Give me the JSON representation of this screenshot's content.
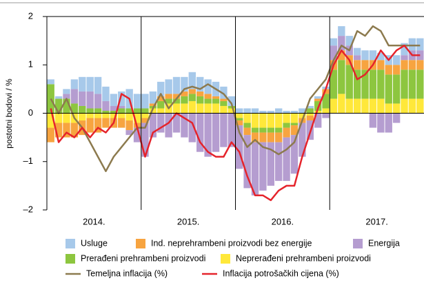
{
  "chart_data": {
    "type": "bar",
    "stacked": true,
    "y_label": "postotni bodovi / %",
    "categories": [
      null,
      null,
      null,
      null,
      null,
      null,
      "2014.",
      null,
      null,
      null,
      null,
      null,
      null,
      null,
      null,
      null,
      null,
      null,
      "2015.",
      null,
      null,
      null,
      null,
      null,
      null,
      null,
      null,
      null,
      null,
      null,
      "2016.",
      null,
      null,
      null,
      null,
      null,
      null,
      null,
      null,
      null,
      null,
      null,
      "2017.",
      null,
      null,
      null,
      null,
      null
    ],
    "ylim": [
      -2,
      2
    ],
    "yticks": [
      {
        "value": -2,
        "label": "–2"
      },
      {
        "value": -1,
        "label": "–1"
      },
      0,
      1,
      2
    ],
    "series": [
      {
        "name": "Usluge",
        "color": "#a7c9ea",
        "type": "bar",
        "values": [
          0.1,
          0.05,
          0.1,
          0.2,
          0.3,
          0.3,
          0.35,
          0.3,
          0.25,
          0.3,
          0.4,
          0.3,
          0.3,
          0.25,
          0.3,
          0.3,
          0.35,
          0.3,
          0.35,
          0.3,
          0.3,
          0.3,
          0.25,
          0.2,
          0.1,
          0.1,
          0.1,
          0.05,
          0.05,
          0.1,
          0.05,
          0.05,
          0.1,
          0.05,
          0.05,
          0.05,
          0.15,
          0.2,
          0.2,
          0.15,
          0.2,
          0.2,
          0.15,
          0.2,
          0.2,
          0.25,
          0.25,
          0.25
        ]
      },
      {
        "name": "Ind. neprehrambeni proizvodi bez energije",
        "color": "#f7a440",
        "type": "bar",
        "values": [
          -0.3,
          -0.3,
          -0.3,
          -0.3,
          -0.3,
          -0.3,
          -0.3,
          -0.2,
          -0.2,
          -0.2,
          -0.2,
          -0.1,
          -0.1,
          0.05,
          0.1,
          0.1,
          0.1,
          0.1,
          0.1,
          0.1,
          0.1,
          0.05,
          0.05,
          0,
          -0.1,
          -0.15,
          -0.2,
          -0.2,
          -0.2,
          -0.2,
          -0.2,
          -0.2,
          -0.1,
          -0.1,
          0.05,
          0.1,
          0.2,
          0.2,
          0.2,
          0.2,
          0.2,
          0.2,
          0.2,
          0.2,
          0.2,
          0.2,
          0.2,
          0.2
        ]
      },
      {
        "name": "Energija",
        "color": "#b59dd0",
        "type": "bar",
        "values": [
          0,
          0,
          0.1,
          0.3,
          0.3,
          0.35,
          0.3,
          0.2,
          0.1,
          0.05,
          -0.1,
          -0.3,
          -0.7,
          -0.5,
          -0.4,
          -0.5,
          -0.4,
          -0.5,
          -0.6,
          -0.8,
          -0.9,
          -0.8,
          -0.7,
          -0.7,
          -0.9,
          -1.1,
          -1.1,
          -1.0,
          -0.9,
          -0.8,
          -0.9,
          -0.8,
          -0.7,
          -0.4,
          -0.3,
          -0.1,
          0.3,
          0.3,
          0.2,
          0.1,
          0,
          -0.3,
          -0.4,
          -0.4,
          -0.2,
          0.1,
          0.2,
          0.2
        ]
      },
      {
        "name": "Prerađeni prehrambeni proizvodi",
        "color": "#8dc63f",
        "type": "bar",
        "values": [
          0.6,
          0.3,
          0.3,
          0.2,
          0.15,
          0.1,
          0.1,
          0.05,
          0.05,
          0.1,
          0.1,
          0.1,
          0.1,
          0.05,
          0.15,
          0.1,
          0.1,
          0.15,
          0.15,
          0.15,
          0.1,
          0.1,
          0.1,
          0.05,
          -0.05,
          -0.1,
          -0.1,
          -0.1,
          -0.1,
          -0.1,
          -0.1,
          -0.05,
          0,
          0.1,
          0.2,
          0.3,
          0.6,
          0.7,
          0.7,
          0.6,
          0.6,
          0.6,
          0.6,
          0.6,
          0.6,
          0.6,
          0.6,
          0.6
        ]
      },
      {
        "name": "Neprerađeni prehrambeni proizvodi",
        "color": "#ffe83a",
        "type": "bar",
        "values": [
          -0.3,
          -0.2,
          -0.2,
          -0.2,
          -0.15,
          -0.1,
          -0.1,
          -0.1,
          -0.1,
          -0.1,
          -0.15,
          -0.2,
          -0.1,
          0.1,
          0.1,
          0.2,
          0.2,
          0.2,
          0.25,
          0.2,
          0.2,
          0.2,
          0.15,
          0.1,
          -0.1,
          -0.2,
          -0.3,
          -0.3,
          -0.3,
          -0.3,
          -0.2,
          -0.2,
          -0.1,
          -0.05,
          0.05,
          0.1,
          0.3,
          0.4,
          0.3,
          0.3,
          0.3,
          0.3,
          0.3,
          0.2,
          0.2,
          0.3,
          0.3,
          0.3
        ]
      },
      {
        "name": "Temeljna inflacija (%)",
        "color": "#8c7a4e",
        "type": "line",
        "values": [
          0.3,
          0,
          0.3,
          -0.1,
          -0.3,
          -0.6,
          -0.9,
          -1.2,
          -0.9,
          -0.7,
          -0.5,
          -0.3,
          -0.3,
          0.1,
          0.4,
          0.1,
          0.3,
          0.5,
          0.55,
          0.5,
          0.6,
          0.5,
          0.4,
          0.2,
          -0.4,
          -0.7,
          -0.55,
          -0.7,
          -0.75,
          -0.85,
          -0.75,
          -0.6,
          -0.15,
          0.3,
          0.5,
          0.7,
          1.1,
          1.4,
          1.3,
          1.7,
          1.6,
          1.8,
          1.7,
          1.4,
          1.4,
          1.4,
          1.4,
          1.4
        ]
      },
      {
        "name": "Inflacija potrošačkih cijena (%)",
        "color": "#e5232b",
        "type": "line",
        "values": [
          0.1,
          -0.6,
          -0.4,
          -0.5,
          -0.3,
          -0.5,
          -0.3,
          -0.4,
          -0.2,
          0.4,
          0.3,
          -0.3,
          -0.9,
          -0.4,
          -0.3,
          -0.2,
          0,
          -0.1,
          -0.2,
          -0.6,
          -0.8,
          -0.9,
          -0.9,
          -0.6,
          -0.8,
          -1.3,
          -1.7,
          -1.7,
          -1.8,
          -1.6,
          -1.5,
          -1.5,
          -0.9,
          -0.4,
          0.1,
          0.5,
          1.0,
          1.3,
          1.1,
          0.7,
          0.8,
          1.0,
          1.3,
          1.1,
          1.3,
          1.4,
          1.2,
          1.2
        ]
      }
    ]
  }
}
